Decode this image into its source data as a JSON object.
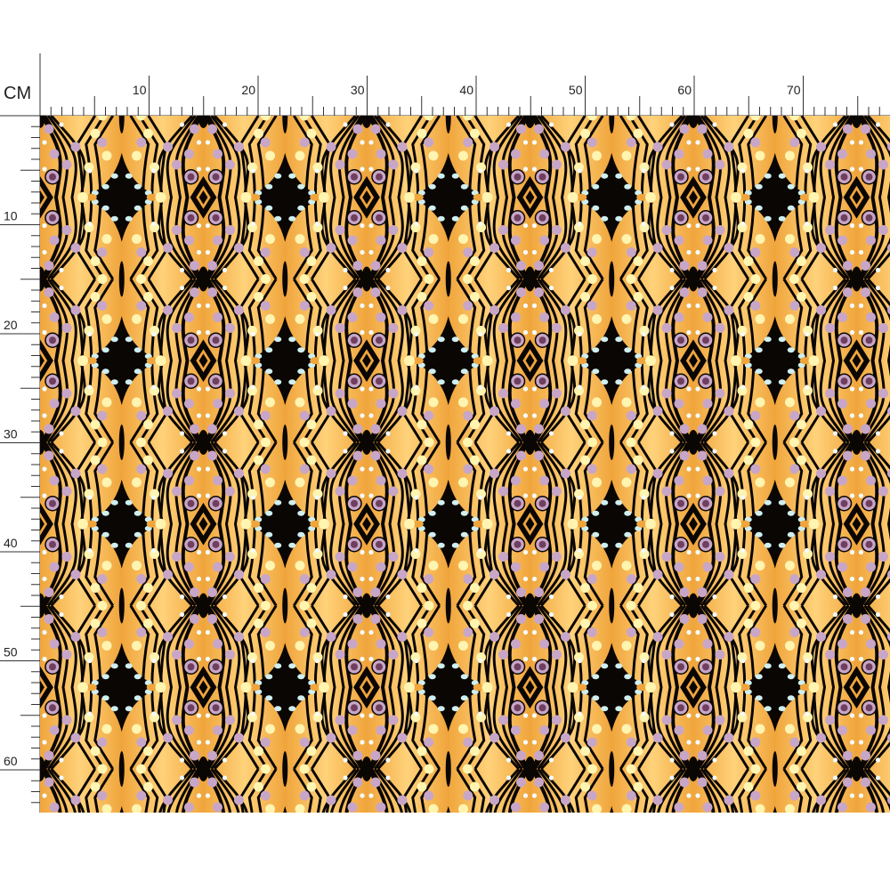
{
  "ruler": {
    "unit": "CM",
    "top_labels": [
      "10",
      "20",
      "30",
      "40",
      "50",
      "60",
      "70"
    ],
    "left_labels": [
      "10",
      "20",
      "30",
      "40",
      "50",
      "60"
    ]
  },
  "fabric": {
    "pattern": "orange butterfly-wing stripes with black wavy lines, lilac and cream dots",
    "colors": {
      "base": "#f0a53c",
      "light": "#ffd27a",
      "black": "#0a0604",
      "cream": "#fff4b0",
      "lilac": "#c8a6c8",
      "plum": "#6e3f5e",
      "ice": "#cfeff0"
    }
  }
}
